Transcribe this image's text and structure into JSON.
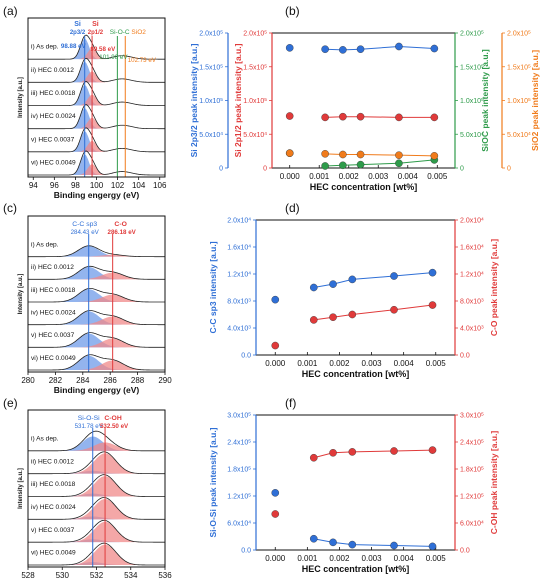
{
  "colors": {
    "blue": "#2f6fd6",
    "red": "#e03a3a",
    "green": "#2e9b4a",
    "orange": "#f07b1b",
    "fill_blue": "#6f9be8",
    "fill_red": "#f08a8a",
    "spec": "#222222"
  },
  "panel_labels": [
    "(a)",
    "(b)",
    "(c)",
    "(d)",
    "(e)",
    "(f)"
  ],
  "samples": [
    "i) As dep.",
    "ii) HEC 0.0012",
    "iii) HEC 0.0018",
    "iv) HEC 0.0024",
    "v) HEC 0.0037",
    "vi) HEC 0.0049"
  ],
  "chart_data": [
    {
      "panel": "(a)",
      "type": "line",
      "xlabel": "Binding engergy (eV)",
      "ylabel": "Intensity [a.u.]",
      "xlim": [
        93.5,
        106.5
      ],
      "xreversed": false,
      "xticks": [
        "94",
        "96",
        "98",
        "100",
        "102",
        "104",
        "106"
      ],
      "xtick_values": [
        94,
        96,
        98,
        100,
        102,
        104,
        106
      ],
      "grid": false,
      "legend": [
        "Si 2p3/2",
        "Si 2p1/2",
        "Si-O-C",
        "SiO2"
      ],
      "peak_labels": [
        {
          "name": "Si 2p3/2",
          "energy": 98.88,
          "label": "98.88 eV",
          "color": "blue"
        },
        {
          "name": "Si 2p1/2",
          "energy": 99.58,
          "label": "99.58 eV",
          "color": "red"
        },
        {
          "name": "Si-O-C",
          "energy": 101.98,
          "label": "101.98 eV",
          "color": "green"
        },
        {
          "name": "SiO2",
          "energy": 102.73,
          "label": "102.73 eV",
          "color": "orange"
        }
      ],
      "title_labels": {
        "si32_top": "Si",
        "si32_bot": "2p3/2",
        "si12_top": "Si",
        "si12_bot": "2p1/2",
        "sioc": "Si-O-C",
        "sio2": "SiO2"
      }
    },
    {
      "panel": "(b)",
      "type": "scatter",
      "xlabel": "HEC concentration [wt%]",
      "xlim": [
        -0.0006,
        0.0056
      ],
      "xticks": [
        "0.000",
        "0.001",
        "0.002",
        "0.003",
        "0.004",
        "0.005"
      ],
      "xtick_values": [
        0,
        0.001,
        0.002,
        0.003,
        0.004,
        0.005
      ],
      "x": [
        0.0,
        0.0012,
        0.0018,
        0.0024,
        0.0037,
        0.0049
      ],
      "ylim": [
        0,
        200000
      ],
      "grid": false,
      "axes": [
        {
          "name": "Si 2p3/2 peak intensity [a.u.]",
          "color": "blue",
          "side": "left",
          "ticks": [
            "0",
            "5.0x10^4",
            "1.0x10^5",
            "1.5x10^5",
            "2.0x10^5"
          ]
        },
        {
          "name": "Si 2p1/2 peak intensity [a.u.]",
          "color": "red",
          "side": "left-inner",
          "ticks": [
            "0",
            "5.0x10^4",
            "1.0x10^5",
            "1.5x10^5",
            "2.0x10^5"
          ]
        },
        {
          "name": "SiOC peak intensity [a.u.]",
          "color": "green",
          "side": "right",
          "ticks": [
            "0",
            "5.0x10^4",
            "1.0x10^5",
            "1.5x10^5",
            "2.0x10^5"
          ]
        },
        {
          "name": "SiO2 peak intensity [a.u.]",
          "color": "orange",
          "side": "right-outer",
          "ticks": [
            "0",
            "5.0x10^4",
            "1.0x10^5",
            "1.5x10^5",
            "2.0x10^5"
          ]
        }
      ],
      "series": [
        {
          "name": "Si 2p3/2",
          "color": "blue",
          "values": [
            178000,
            176000,
            175000,
            176000,
            180000,
            177000
          ],
          "connect_from": 1
        },
        {
          "name": "Si 2p1/2",
          "color": "red",
          "values": [
            77000,
            75000,
            76000,
            76000,
            75000,
            75000
          ],
          "connect_from": 1
        },
        {
          "name": "SiOC",
          "color": "green",
          "values": [
            22000,
            3000,
            4000,
            5000,
            7000,
            12000
          ],
          "connect_from": 1
        },
        {
          "name": "SiO2",
          "color": "orange",
          "values": [
            22000,
            21000,
            20000,
            20000,
            19000,
            18000
          ],
          "connect_from": 1
        }
      ]
    },
    {
      "panel": "(c)",
      "type": "line",
      "xlabel": "Binding engergy (eV)",
      "ylabel": "Intensity [a.u.]",
      "xlim": [
        280,
        290
      ],
      "xticks": [
        "280",
        "282",
        "284",
        "286",
        "288",
        "290"
      ],
      "xtick_values": [
        280,
        282,
        284,
        286,
        288,
        290
      ],
      "grid": false,
      "peak_labels": [
        {
          "name": "C-C sp3",
          "energy": 284.43,
          "label": "284.43 eV",
          "color": "blue"
        },
        {
          "name": "C-O",
          "energy": 286.18,
          "label": "286.18 eV",
          "color": "red"
        }
      ],
      "title_labels": {
        "blue": "C-C sp3",
        "red": "C-O"
      }
    },
    {
      "panel": "(d)",
      "type": "scatter",
      "xlabel": "HEC concentration [wt%]",
      "xlim": [
        -0.0006,
        0.0056
      ],
      "xticks": [
        "0.000",
        "0.001",
        "0.002",
        "0.003",
        "0.004",
        "0.005"
      ],
      "xtick_values": [
        0,
        0.001,
        0.002,
        0.003,
        0.004,
        0.005
      ],
      "x": [
        0.0,
        0.0012,
        0.0018,
        0.0024,
        0.0037,
        0.0049
      ],
      "ylim": [
        0,
        20000
      ],
      "grid": false,
      "axes": [
        {
          "name": "C-C sp3 intensity [a.u.]",
          "color": "blue",
          "side": "left",
          "ticks": [
            "0.0",
            "4.0x10^3",
            "8.0x10^3",
            "1.2x10^4",
            "1.6x10^4",
            "2.0x10^4"
          ]
        },
        {
          "name": "C-O peak intensity [a.u.]",
          "color": "red",
          "side": "right",
          "ticks": [
            "0.0",
            "4.0x10^3",
            "8.0x10^3",
            "1.2x10^4",
            "1.6x10^4",
            "2.0x10^4"
          ]
        }
      ],
      "series": [
        {
          "name": "C-C sp3",
          "color": "blue",
          "values": [
            8200,
            10000,
            10500,
            11200,
            11700,
            12200
          ],
          "connect_from": 1
        },
        {
          "name": "C-O",
          "color": "red",
          "values": [
            1400,
            5200,
            5600,
            6000,
            6700,
            7400
          ],
          "connect_from": 1
        }
      ]
    },
    {
      "panel": "(e)",
      "type": "line",
      "xlabel": "Binding engergy (eV)",
      "ylabel": "Intensity [a.u.]",
      "xlim": [
        528,
        536
      ],
      "xticks": [
        "528",
        "530",
        "532",
        "534",
        "536"
      ],
      "xtick_values": [
        528,
        530,
        532,
        534,
        536
      ],
      "grid": false,
      "peak_labels": [
        {
          "name": "Si-O-Si",
          "energy": 531.78,
          "label": "531.78 eV",
          "color": "blue"
        },
        {
          "name": "C-OH",
          "energy": 532.5,
          "label": "532.50 eV",
          "color": "red"
        }
      ],
      "title_labels": {
        "blue": "Si-O-Si",
        "red": "C-OH"
      }
    },
    {
      "panel": "(f)",
      "type": "scatter",
      "xlabel": "HEC concentration [wt%]",
      "xlim": [
        -0.0006,
        0.0056
      ],
      "xticks": [
        "0.000",
        "0.001",
        "0.002",
        "0.003",
        "0.004",
        "0.005"
      ],
      "xtick_values": [
        0,
        0.001,
        0.002,
        0.003,
        0.004,
        0.005
      ],
      "x": [
        0.0,
        0.0012,
        0.0018,
        0.0024,
        0.0037,
        0.0049
      ],
      "ylim": [
        0,
        300000
      ],
      "grid": false,
      "axes": [
        {
          "name": "Si-O-Si peak intensity [a.u.]",
          "color": "blue",
          "side": "left",
          "ticks": [
            "0.0",
            "6.0x10^4",
            "1.2x10^5",
            "1.8x10^5",
            "2.4x10^5",
            "3.0x10^5"
          ]
        },
        {
          "name": "C-OH peak intensity [a.u.]",
          "color": "red",
          "side": "right",
          "ticks": [
            "0.0",
            "6.0x10^4",
            "1.2x10^5",
            "1.8x10^5",
            "2.4x10^5",
            "3.0x10^5"
          ]
        }
      ],
      "series": [
        {
          "name": "Si-O-Si",
          "color": "blue",
          "values": [
            127000,
            25000,
            17000,
            12000,
            10000,
            8000
          ],
          "connect_from": 1
        },
        {
          "name": "C-OH",
          "color": "red",
          "values": [
            80000,
            205000,
            216000,
            218000,
            220000,
            222000
          ],
          "connect_from": 1
        }
      ]
    }
  ]
}
